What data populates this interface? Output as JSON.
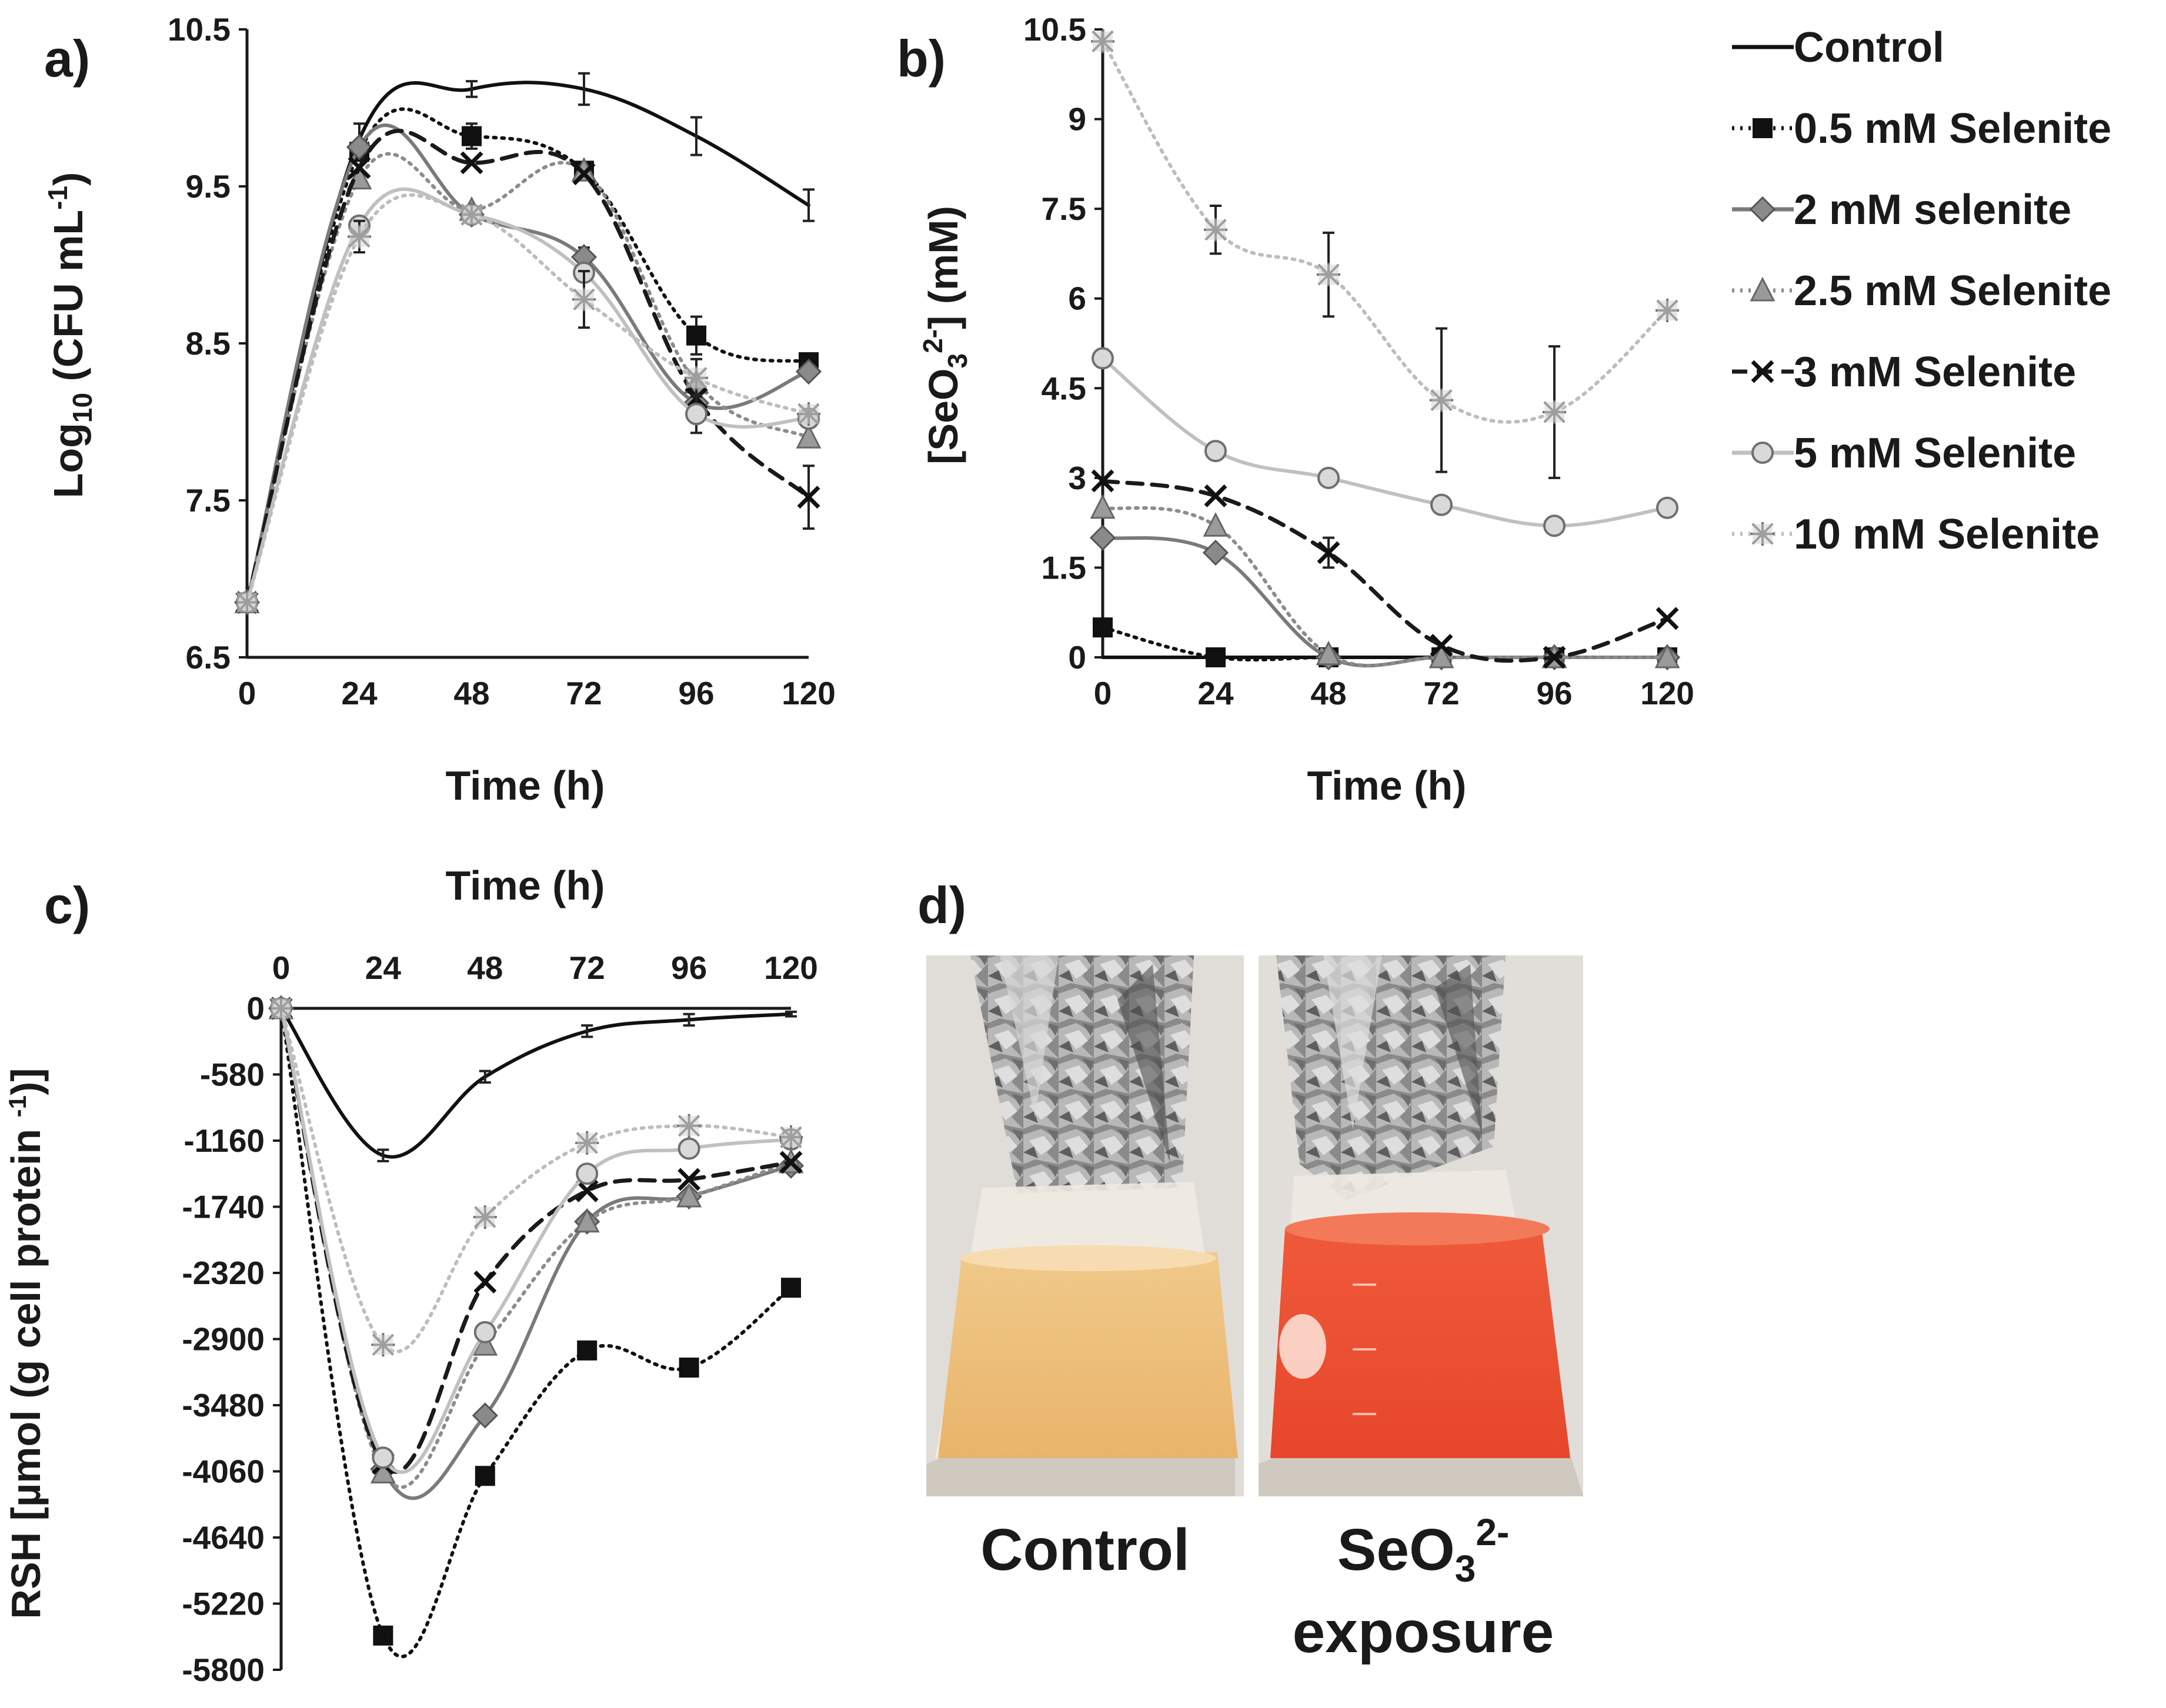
{
  "panels": {
    "a": "a)",
    "b": "b)",
    "c": "c)",
    "d": "d)"
  },
  "colors": {
    "control": "#111111",
    "s05": "#111111",
    "s2": "#7a7a7a",
    "s25": "#8c8c8c",
    "s3": "#1a1a1a",
    "s5": "#c0c0c0",
    "s10": "#bdbdbd"
  },
  "legend": [
    {
      "key": "control",
      "label": "Control",
      "marker": "none",
      "dash": "solid"
    },
    {
      "key": "s05",
      "label": "0.5 mM Selenite",
      "marker": "square",
      "dash": "dotted"
    },
    {
      "key": "s2",
      "label": "2 mM selenite",
      "marker": "diamond",
      "dash": "solid"
    },
    {
      "key": "s25",
      "label": "2.5 mM Selenite",
      "marker": "triangle",
      "dash": "dotted"
    },
    {
      "key": "s3",
      "label": "3 mM Selenite",
      "marker": "x",
      "dash": "dashed"
    },
    {
      "key": "s5",
      "label": "5 mM Selenite",
      "marker": "circle",
      "dash": "solid"
    },
    {
      "key": "s10",
      "label": "10 mM Selenite",
      "marker": "star",
      "dash": "dotted"
    }
  ],
  "photo_captions": {
    "left": "Control",
    "right_line1_main": "SeO",
    "right_line1_sub": "3",
    "right_line1_sup": "2-",
    "right_line2": "exposure"
  },
  "chart_data": [
    {
      "id": "a",
      "type": "line",
      "xlabel": "Time (h)",
      "ylabel_parts": {
        "pre": "Log",
        "sub": "10",
        "mid": " (CFU mL",
        "sup": "-1",
        "post": ")"
      },
      "x": [
        0,
        24,
        48,
        72,
        96,
        120
      ],
      "xlim": [
        0,
        120
      ],
      "ylim": [
        6.5,
        10.5
      ],
      "ytick_labels": [
        "6.5",
        "7.5",
        "8.5",
        "9.5",
        "10.5"
      ],
      "xtick_labels": [
        "0",
        "24",
        "48",
        "72",
        "96",
        "120"
      ],
      "series": [
        {
          "name": "Control",
          "key": "control",
          "values": [
            6.85,
            9.8,
            10.12,
            10.12,
            9.82,
            9.38
          ],
          "errors": [
            0,
            0.1,
            0.05,
            0.1,
            0.12,
            0.1
          ]
        },
        {
          "name": "0.5 mM Selenite",
          "key": "s05",
          "values": [
            6.85,
            9.72,
            9.82,
            9.6,
            8.55,
            8.38
          ],
          "errors": [
            0,
            0,
            0.08,
            0,
            0.12,
            0
          ]
        },
        {
          "name": "2 mM selenite",
          "key": "s2",
          "values": [
            6.85,
            9.75,
            9.32,
            9.05,
            8.12,
            8.32
          ],
          "errors": [
            0,
            0,
            0,
            0.06,
            0,
            0
          ]
        },
        {
          "name": "2.5 mM Selenite",
          "key": "s25",
          "values": [
            6.85,
            9.55,
            9.35,
            9.6,
            8.25,
            7.9
          ],
          "errors": [
            0,
            0,
            0,
            0,
            0,
            0
          ]
        },
        {
          "name": "3 mM Selenite",
          "key": "s3",
          "values": [
            6.85,
            9.62,
            9.65,
            9.58,
            8.15,
            7.52
          ],
          "errors": [
            0,
            0,
            0,
            0,
            0,
            0.2
          ]
        },
        {
          "name": "5 mM Selenite",
          "key": "s5",
          "values": [
            6.85,
            9.25,
            9.32,
            8.95,
            8.05,
            8.02
          ],
          "errors": [
            0,
            0,
            0,
            0,
            0.12,
            0
          ]
        },
        {
          "name": "10 mM Selenite",
          "key": "s10",
          "values": [
            6.85,
            9.18,
            9.32,
            8.78,
            8.28,
            8.05
          ],
          "errors": [
            0,
            0.1,
            0,
            0.18,
            0.12,
            0
          ]
        }
      ]
    },
    {
      "id": "b",
      "type": "line",
      "xlabel": "Time (h)",
      "ylabel_parts": {
        "pre": "[SeO",
        "sub": "3",
        "sup": "2-",
        "post": "] (mM)"
      },
      "x": [
        0,
        24,
        48,
        72,
        96,
        120
      ],
      "xlim": [
        0,
        120
      ],
      "ylim": [
        0,
        10.5
      ],
      "ytick_values": [
        0,
        1.5,
        3,
        4.5,
        6,
        7.5,
        9,
        10.5
      ],
      "ytick_labels": [
        "0",
        "1.5",
        "3",
        "4.5",
        "6",
        "7.5",
        "9",
        "10.5"
      ],
      "xtick_labels": [
        "0",
        "24",
        "48",
        "72",
        "96",
        "120"
      ],
      "series": [
        {
          "name": "Control",
          "key": "control",
          "values": [
            0,
            0,
            0,
            0,
            0,
            0
          ],
          "errors": [
            0,
            0,
            0,
            0,
            0,
            0
          ]
        },
        {
          "name": "0.5 mM Selenite",
          "key": "s05",
          "values": [
            0.5,
            0,
            0,
            0,
            0,
            0
          ],
          "errors": [
            0,
            0,
            0,
            0,
            0,
            0
          ]
        },
        {
          "name": "2 mM selenite",
          "key": "s2",
          "values": [
            2.0,
            1.75,
            0,
            0,
            0,
            0
          ],
          "errors": [
            0,
            0,
            0,
            0,
            0,
            0
          ]
        },
        {
          "name": "2.5 mM Selenite",
          "key": "s25",
          "values": [
            2.5,
            2.2,
            0.05,
            0,
            0,
            0
          ],
          "errors": [
            0,
            0,
            0,
            0,
            0,
            0
          ]
        },
        {
          "name": "3 mM Selenite",
          "key": "s3",
          "values": [
            2.95,
            2.7,
            1.75,
            0.2,
            0,
            0.65
          ],
          "errors": [
            0,
            0,
            0.25,
            0,
            0,
            0
          ]
        },
        {
          "name": "5 mM Selenite",
          "key": "s5",
          "values": [
            5.0,
            3.45,
            3.0,
            2.55,
            2.2,
            2.5
          ],
          "errors": [
            0,
            0,
            0,
            0,
            0,
            0
          ]
        },
        {
          "name": "10 mM Selenite",
          "key": "s10",
          "values": [
            10.3,
            7.15,
            6.4,
            4.3,
            4.1,
            5.8
          ],
          "errors": [
            0,
            0.4,
            0.7,
            1.2,
            1.1,
            0
          ]
        }
      ]
    },
    {
      "id": "c",
      "type": "line",
      "xlabel": "Time (h)",
      "ylabel_parts": {
        "pre": "RSH [µmol (g cell protein ",
        "sup": "-1",
        "post": ")]"
      },
      "x": [
        0,
        24,
        48,
        72,
        96,
        120
      ],
      "xlim": [
        0,
        120
      ],
      "ylim": [
        -5800,
        0
      ],
      "ytick_values": [
        0,
        -580,
        -1160,
        -1740,
        -2320,
        -2900,
        -3480,
        -4060,
        -4640,
        -5220,
        -5800
      ],
      "ytick_labels": [
        "0",
        "-580",
        "-1160",
        "-1740",
        "-2320",
        "-2900",
        "-3480",
        "-4060",
        "-4640",
        "-5220",
        "-5800"
      ],
      "xtick_labels": [
        "0",
        "24",
        "48",
        "72",
        "96",
        "120"
      ],
      "series": [
        {
          "name": "Control",
          "key": "control",
          "values": [
            0,
            -1290,
            -600,
            -200,
            -100,
            -50
          ],
          "errors": [
            0,
            50,
            50,
            50,
            50,
            20
          ]
        },
        {
          "name": "0.5 mM Selenite",
          "key": "s05",
          "values": [
            0,
            -5500,
            -4100,
            -3000,
            -3150,
            -2450
          ],
          "errors": [
            0,
            0,
            0,
            0,
            0,
            0
          ]
        },
        {
          "name": "2 mM selenite",
          "key": "s2",
          "values": [
            0,
            -4040,
            -3570,
            -1870,
            -1650,
            -1380
          ],
          "errors": [
            0,
            0,
            0,
            0,
            0,
            0
          ]
        },
        {
          "name": "2.5 mM Selenite",
          "key": "s25",
          "values": [
            0,
            -4070,
            -2950,
            -1870,
            -1650,
            -1350
          ],
          "errors": [
            0,
            0,
            0,
            0,
            0,
            0
          ]
        },
        {
          "name": "3 mM Selenite",
          "key": "s3",
          "values": [
            0,
            -3990,
            -2400,
            -1600,
            -1500,
            -1350
          ],
          "errors": [
            0,
            0,
            0,
            0,
            0,
            0
          ]
        },
        {
          "name": "5 mM Selenite",
          "key": "s5",
          "values": [
            0,
            -3940,
            -2840,
            -1450,
            -1230,
            -1150
          ],
          "errors": [
            0,
            0,
            0,
            0,
            0,
            0
          ]
        },
        {
          "name": "10 mM Selenite",
          "key": "s10",
          "values": [
            0,
            -2950,
            -1830,
            -1180,
            -1030,
            -1130
          ],
          "errors": [
            0,
            0,
            0,
            0,
            0,
            0
          ]
        }
      ]
    }
  ]
}
